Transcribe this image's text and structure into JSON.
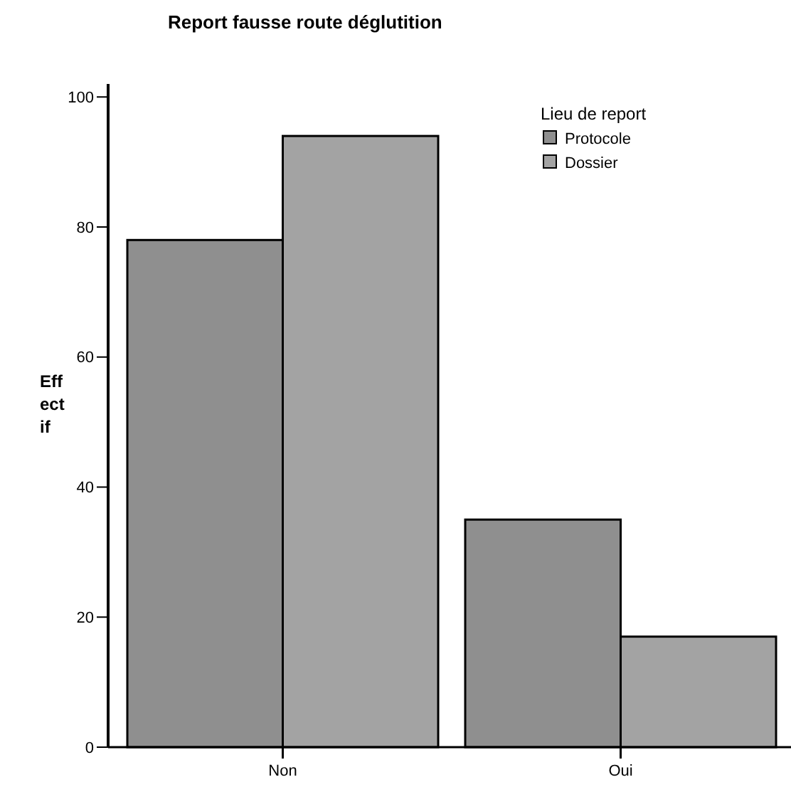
{
  "chart_data": {
    "type": "bar",
    "title": "Report fausse route déglutition",
    "ylabel": "Effectif",
    "legend_title": "Lieu de report",
    "categories": [
      "Non",
      "Oui"
    ],
    "series": [
      {
        "name": "Protocole",
        "color": "#8f8f8f",
        "values": [
          78,
          35
        ]
      },
      {
        "name": "Dossier",
        "color": "#a3a3a3",
        "values": [
          94,
          17
        ]
      }
    ],
    "ylim": [
      0,
      102
    ],
    "yticks": [
      0,
      20,
      40,
      60,
      80,
      100
    ],
    "grid": false,
    "legend": "top right"
  }
}
